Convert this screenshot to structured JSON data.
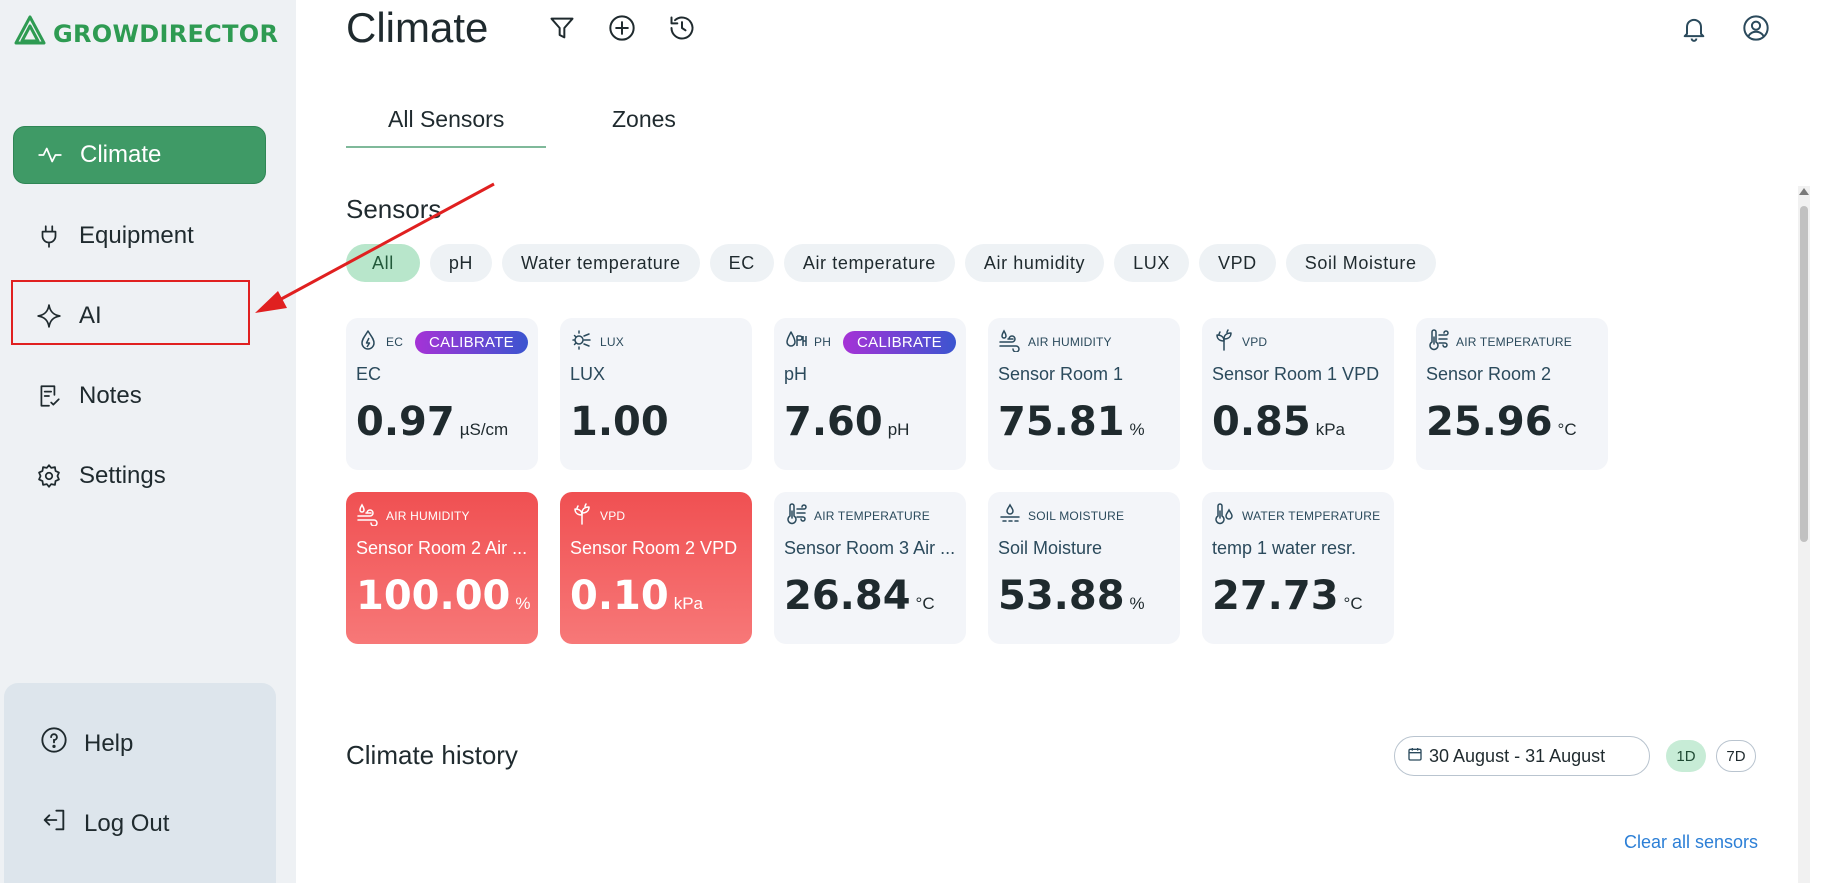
{
  "brand": {
    "name": "GROWDIRECTOR",
    "color": "#2e9b52"
  },
  "sidebar": {
    "items": [
      {
        "label": "Climate",
        "icon": "activity-icon",
        "active": true
      },
      {
        "label": "Equipment",
        "icon": "plug-icon",
        "active": false
      },
      {
        "label": "AI",
        "icon": "sparkle-icon",
        "active": false
      },
      {
        "label": "Notes",
        "icon": "notes-icon",
        "active": false
      },
      {
        "label": "Settings",
        "icon": "gear-icon",
        "active": false
      }
    ],
    "bottom": [
      {
        "label": "Help",
        "icon": "help-icon"
      },
      {
        "label": "Log Out",
        "icon": "logout-icon"
      }
    ]
  },
  "header": {
    "title": "Climate",
    "icons": [
      "filter-icon",
      "add-icon",
      "history-icon",
      "bell-icon",
      "user-icon"
    ]
  },
  "tabs": [
    {
      "label": "All Sensors",
      "active": true
    },
    {
      "label": "Zones",
      "active": false
    }
  ],
  "sensors": {
    "title": "Sensors",
    "filters": [
      "All",
      "pH",
      "Water temperature",
      "EC",
      "Air temperature",
      "Air humidity",
      "LUX",
      "VPD",
      "Soil Moisture"
    ],
    "active_filter": "All",
    "cards": [
      {
        "type": "EC",
        "icon": "ec-icon",
        "name": "EC",
        "value": "0.97",
        "unit": "µS/cm",
        "badge": "CALIBRATE",
        "alert": false
      },
      {
        "type": "LUX",
        "icon": "lux-icon",
        "name": "LUX",
        "value": "1.00",
        "unit": "",
        "badge": "",
        "alert": false
      },
      {
        "type": "PH",
        "icon": "ph-icon",
        "name": "pH",
        "value": "7.60",
        "unit": "pH",
        "badge": "CALIBRATE",
        "alert": false
      },
      {
        "type": "AIR HUMIDITY",
        "icon": "air-humidity-icon",
        "name": "Sensor Room 1",
        "value": "75.81",
        "unit": "%",
        "badge": "",
        "alert": false
      },
      {
        "type": "VPD",
        "icon": "vpd-icon",
        "name": "Sensor Room 1 VPD",
        "value": "0.85",
        "unit": "kPa",
        "badge": "",
        "alert": false
      },
      {
        "type": "AIR TEMPERATURE",
        "icon": "air-temperature-icon",
        "name": "Sensor Room 2",
        "value": "25.96",
        "unit": "°C",
        "badge": "",
        "alert": false
      },
      {
        "type": "AIR HUMIDITY",
        "icon": "air-humidity-icon",
        "name": "Sensor Room 2 Air ...",
        "value": "100.00",
        "unit": "%",
        "badge": "",
        "alert": true
      },
      {
        "type": "VPD",
        "icon": "vpd-icon",
        "name": "Sensor Room 2 VPD",
        "value": "0.10",
        "unit": "kPa",
        "badge": "",
        "alert": true
      },
      {
        "type": "AIR TEMPERATURE",
        "icon": "air-temperature-icon",
        "name": "Sensor Room 3 Air ...",
        "value": "26.84",
        "unit": "°C",
        "badge": "",
        "alert": false
      },
      {
        "type": "SOIL MOISTURE",
        "icon": "soil-moisture-icon",
        "name": "Soil Moisture",
        "value": "53.88",
        "unit": "%",
        "badge": "",
        "alert": false
      },
      {
        "type": "WATER TEMPERATURE",
        "icon": "water-temperature-icon",
        "name": "temp 1 water resr.",
        "value": "27.73",
        "unit": "°C",
        "badge": "",
        "alert": false
      }
    ]
  },
  "history": {
    "title": "Climate history",
    "date_range": "30 August - 31 August",
    "ranges": [
      "1D",
      "7D"
    ],
    "active_range": "1D",
    "clear_label": "Clear all sensors"
  },
  "colors": {
    "accent": "#3f9a66",
    "alert": "#f05052",
    "link": "#2c7fd6",
    "annotation": "#e02020"
  }
}
